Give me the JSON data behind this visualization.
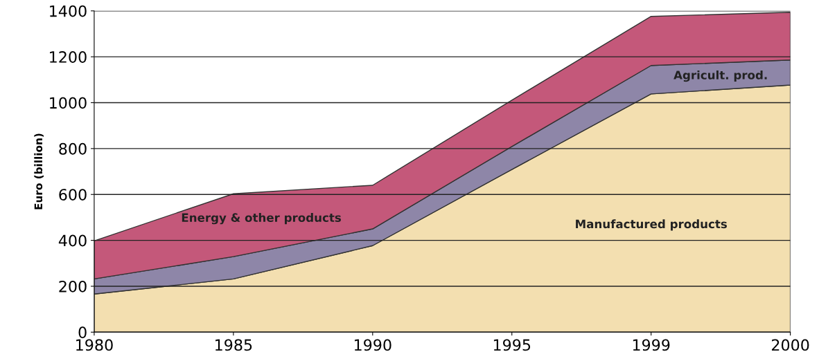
{
  "chart_data": {
    "type": "area",
    "stacked": true,
    "ylabel": "Euro (billion)",
    "categories": [
      "1980",
      "1985",
      "1990",
      "1995",
      "1999",
      "2000"
    ],
    "series": [
      {
        "name": "Manufactured products",
        "color": "#f3dfb0",
        "values": [
          166,
          232,
          377,
          709,
          1038,
          1077
        ]
      },
      {
        "name": "Agricult. prod.",
        "color": "#8e86a8",
        "values": [
          66,
          97,
          73,
          100,
          124,
          109
        ]
      },
      {
        "name": "Energy & other products",
        "color": "#c4587a",
        "values": [
          166,
          274,
          190,
          202,
          214,
          208
        ]
      }
    ],
    "ylim": [
      0,
      1400
    ],
    "yticks": [
      0,
      200,
      400,
      600,
      800,
      1000,
      1200,
      1400
    ],
    "grid": "y",
    "legend": false
  }
}
